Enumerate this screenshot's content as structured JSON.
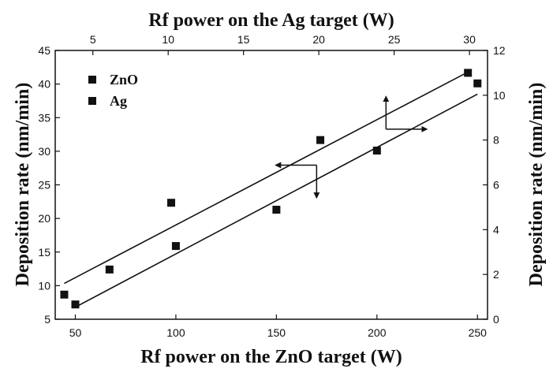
{
  "chart_data": {
    "type": "scatter",
    "x_bottom": {
      "label": "Rf power on the ZnO target (W)",
      "lim": [
        40,
        255
      ],
      "ticks": [
        50,
        100,
        150,
        200,
        250
      ]
    },
    "x_top": {
      "label": "Rf power on the Ag target (W)",
      "lim": [
        2.5,
        31.2
      ],
      "ticks": [
        5,
        10,
        15,
        20,
        25,
        30
      ]
    },
    "y_left": {
      "label": "Deposition rate (nm/min)",
      "lim": [
        5,
        45
      ],
      "ticks": [
        5,
        10,
        15,
        20,
        25,
        30,
        35,
        40,
        45
      ]
    },
    "y_right": {
      "label": "Deposition rate (nm/min)",
      "lim": [
        0,
        12
      ],
      "ticks": [
        0,
        2,
        4,
        6,
        8,
        10,
        12
      ]
    },
    "legend": {
      "position": "top-left",
      "entries": [
        "ZnO",
        "Ag"
      ]
    },
    "series": [
      {
        "name": "ZnO",
        "axes": "bottom-left",
        "points": [
          [
            50,
            7.2
          ],
          [
            67,
            12.4
          ],
          [
            100,
            15.9
          ],
          [
            150,
            21.3
          ],
          [
            200,
            30.1
          ],
          [
            250,
            40.1
          ]
        ],
        "fit": [
          [
            50,
            6.8
          ],
          [
            250,
            38.5
          ]
        ]
      },
      {
        "name": "Ag",
        "axes": "top-right",
        "points": [
          [
            3.1,
            1.1
          ],
          [
            10.2,
            5.2
          ],
          [
            20.1,
            8.0
          ],
          [
            29.9,
            11.0
          ]
        ],
        "fit": [
          [
            3.1,
            1.6
          ],
          [
            29.8,
            11.0
          ]
        ]
      }
    ],
    "annotations": [
      {
        "series": "ZnO",
        "arrows": [
          "left",
          "down"
        ]
      },
      {
        "series": "Ag",
        "arrows": [
          "up",
          "right"
        ]
      }
    ],
    "grid": false,
    "colors": {
      "marker": "#111111",
      "line": "#111111"
    }
  }
}
